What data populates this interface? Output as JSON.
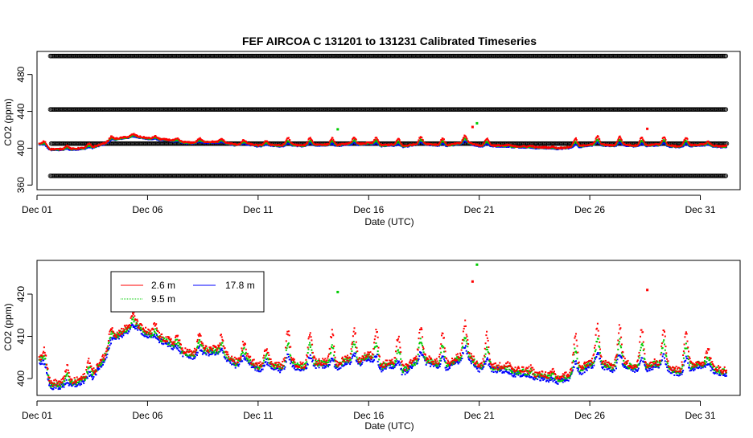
{
  "chart_data": [
    {
      "type": "scatter",
      "title": "FEF   AIRCOA  C    131201  to  131231   Calibrated Timeseries",
      "xlabel": "Date (UTC)",
      "ylabel": "CO2 (ppm)",
      "xlim": [
        1,
        32.8
      ],
      "ylim": [
        355,
        505
      ],
      "x_ticks": [
        1,
        6,
        11,
        16,
        21,
        26,
        31
      ],
      "x_tick_labels": [
        "Dec 01",
        "Dec 06",
        "Dec 11",
        "Dec 16",
        "Dec 21",
        "Dec 26",
        "Dec 31"
      ],
      "y_ticks": [
        360,
        400,
        440,
        480
      ],
      "y_tick_labels": [
        "360",
        "400",
        "440",
        "480"
      ],
      "x_range_data": [
        1.1,
        32.2
      ],
      "reference_lines": [
        {
          "name": "standard-500",
          "y": 500,
          "color": "#000000"
        },
        {
          "name": "standard-442",
          "y": 442,
          "color": "#000000"
        },
        {
          "name": "standard-405",
          "y": 405,
          "color": "#000000"
        },
        {
          "name": "standard-370",
          "y": 370,
          "color": "#000000"
        }
      ],
      "series": [
        {
          "name": "2.6 m",
          "color": "#ff0000",
          "level": "high"
        },
        {
          "name": "9.5 m",
          "color": "#00cc00",
          "level": "mid"
        },
        {
          "name": "17.8 m",
          "color": "#0000ff",
          "level": "low"
        }
      ]
    },
    {
      "type": "scatter",
      "xlabel": "Date (UTC)",
      "ylabel": "CO2 (ppm)",
      "xlim": [
        1,
        32.8
      ],
      "ylim": [
        396,
        428
      ],
      "x_ticks": [
        1,
        6,
        11,
        16,
        21,
        26,
        31
      ],
      "x_tick_labels": [
        "Dec 01",
        "Dec 06",
        "Dec 11",
        "Dec 16",
        "Dec 21",
        "Dec 26",
        "Dec 31"
      ],
      "y_ticks": [
        400,
        410,
        420
      ],
      "y_tick_labels": [
        "400",
        "410",
        "420"
      ],
      "legend": {
        "placement": "top-left",
        "entries": [
          {
            "name": "2.6 m",
            "color": "#ff0000"
          },
          {
            "name": "9.5 m",
            "color": "#00cc00"
          },
          {
            "name": "17.8 m",
            "color": "#0000ff"
          }
        ]
      },
      "series": [
        {
          "name": "2.6 m",
          "color": "#ff0000",
          "level": "high"
        },
        {
          "name": "9.5 m",
          "color": "#00cc00",
          "level": "mid"
        },
        {
          "name": "17.8 m",
          "color": "#0000ff",
          "level": "low"
        }
      ],
      "baseline_profile": {
        "description_days": [
          1.1,
          1.3,
          1.6,
          2.0,
          2.5,
          3.0,
          3.5,
          4.0,
          4.5,
          5.0,
          5.5,
          6.0,
          6.5,
          7.0,
          7.5,
          8.0,
          8.5,
          9.0,
          9.5,
          10.0,
          10.5,
          11.0,
          11.5,
          12.0,
          12.5,
          13.0,
          13.5,
          14.0,
          14.5,
          15.0,
          15.5,
          16.0,
          16.5,
          17.0,
          17.5,
          18.0,
          18.5,
          19.0,
          19.5,
          20.0,
          20.5,
          21.0,
          21.5,
          22.0,
          22.5,
          23.0,
          23.5,
          24.0,
          24.5,
          25.0,
          25.5,
          26.0,
          26.5,
          27.0,
          27.5,
          28.0,
          28.5,
          29.0,
          29.5,
          30.0,
          30.5,
          31.0,
          31.5,
          32.0,
          32.2
        ],
        "co2": [
          404,
          403,
          398,
          398,
          398,
          399,
          400,
          404,
          409,
          411,
          412,
          410,
          409,
          408,
          406,
          405,
          406,
          406,
          405,
          403,
          404,
          402,
          403,
          402,
          403,
          402,
          403,
          403,
          402,
          404,
          403,
          405,
          402,
          403,
          401,
          403,
          404,
          403,
          402,
          404,
          405,
          402,
          402,
          402,
          401,
          401,
          400,
          400,
          399,
          400,
          401,
          403,
          403,
          402,
          403,
          402,
          402,
          403,
          402,
          401,
          402,
          403,
          402,
          401,
          401
        ]
      },
      "annotations": [
        {
          "name": "outlier-green-high",
          "x": 20.9,
          "y": 427,
          "color": "#00cc00"
        },
        {
          "name": "outlier-green-1",
          "x": 14.6,
          "y": 420.5,
          "color": "#00cc00"
        },
        {
          "name": "outlier-red-1",
          "x": 20.7,
          "y": 423,
          "color": "#ff0000"
        },
        {
          "name": "outlier-red-2",
          "x": 28.6,
          "y": 421,
          "color": "#ff0000"
        }
      ]
    }
  ]
}
